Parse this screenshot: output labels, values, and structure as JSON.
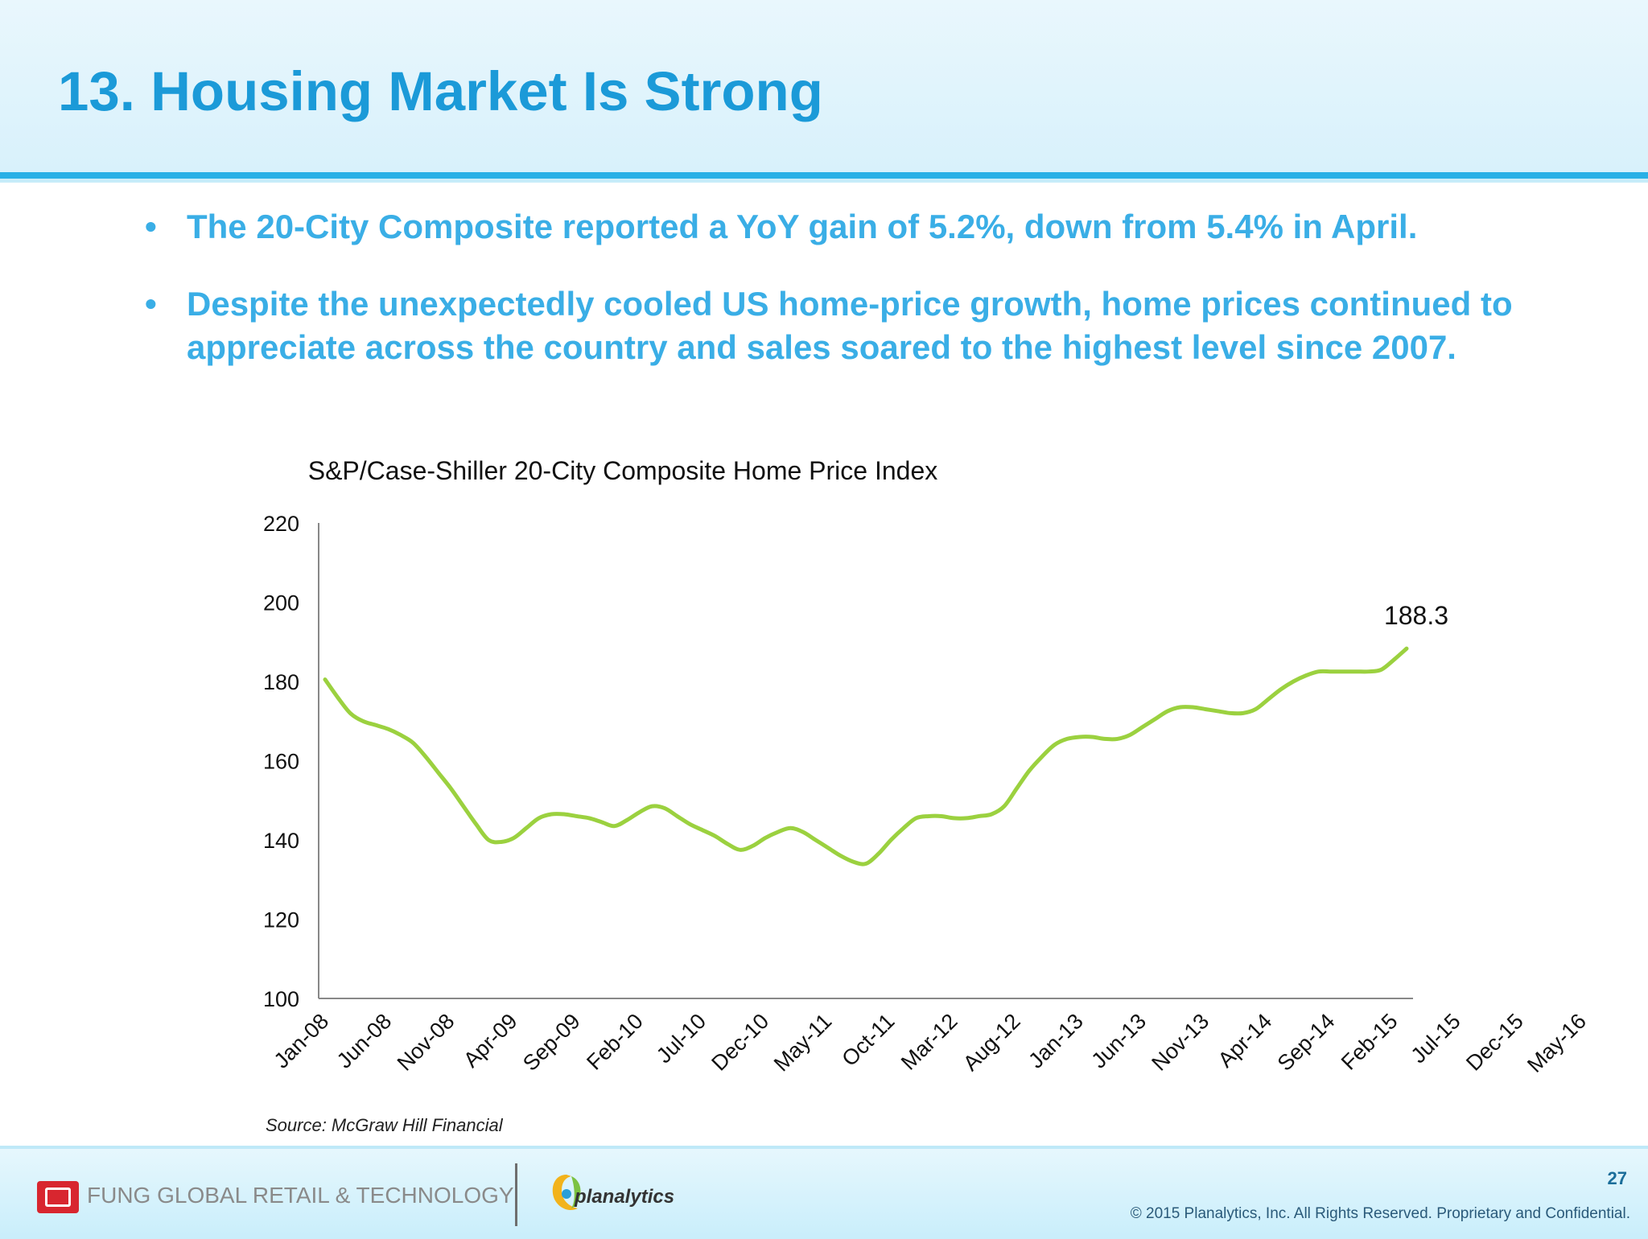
{
  "slide": {
    "title": "13. Housing Market Is Strong",
    "bullets": [
      "The 20-City Composite reported a YoY gain of 5.2%, down from 5.4% in April.",
      "Despite  the unexpectedly cooled US home-price growth, home prices continued to appreciate across the country and sales soared to the highest level since 2007."
    ],
    "bullet_glyph": "•",
    "source": "Source: McGraw Hill Financial",
    "page_number": "27",
    "copyright": "© 2015 Planalytics, Inc. All Rights Reserved. Proprietary and Confidential."
  },
  "footer": {
    "fung_text": "FUNG GLOBAL RETAIL & TECHNOLOGY",
    "planalytics_text": "planalytics",
    "fung_logo_icon": "fung-seal-icon",
    "planalytics_logo_icon": "planalytics-swirl-icon"
  },
  "colors": {
    "title": "#1b9ad8",
    "bullets": "#3aaee6",
    "line": "#9bd13f",
    "header_band": "#29b0e6"
  },
  "chart_data": {
    "type": "line",
    "title": "S&P/Case-Shiller 20-City Composite Home Price Index",
    "xlabel": "",
    "ylabel": "",
    "ylim": [
      100,
      220
    ],
    "yticks": [
      100,
      120,
      140,
      160,
      180,
      200,
      220
    ],
    "x_tick_labels": [
      "Jan-08",
      "Jun-08",
      "Nov-08",
      "Apr-09",
      "Sep-09",
      "Feb-10",
      "Jul-10",
      "Dec-10",
      "May-11",
      "Oct-11",
      "Mar-12",
      "Aug-12",
      "Jan-13",
      "Jun-13",
      "Nov-13",
      "Apr-14",
      "Sep-14",
      "Feb-15",
      "Jul-15",
      "Dec-15",
      "May-16"
    ],
    "grid": false,
    "legend": "none",
    "end_label": "188.3",
    "series": [
      {
        "values": [
          180.5,
          176,
          172,
          170,
          169,
          168,
          166.5,
          164.5,
          161,
          157,
          153,
          148.5,
          144,
          140,
          139.5,
          140.5,
          143,
          145.5,
          146.5,
          146.5,
          146,
          145.5,
          144.5,
          143.5,
          145,
          147,
          148.5,
          148,
          146,
          144,
          142.5,
          141,
          139,
          137.5,
          138.5,
          140.5,
          142,
          143,
          142,
          140,
          138,
          136,
          134.5,
          134,
          136.5,
          140,
          143,
          145.5,
          146,
          146,
          145.5,
          145.5,
          146,
          146.5,
          148.5,
          153,
          157.5,
          161,
          164,
          165.5,
          166,
          166,
          165.5,
          165.5,
          166.5,
          168.5,
          170.5,
          172.5,
          173.5,
          173.5,
          173,
          172.5,
          172,
          172,
          173,
          175.5,
          178,
          180,
          181.5,
          182.5,
          182.5,
          182.5,
          182.5,
          182.5,
          183,
          185.5,
          188.3
        ]
      }
    ]
  }
}
